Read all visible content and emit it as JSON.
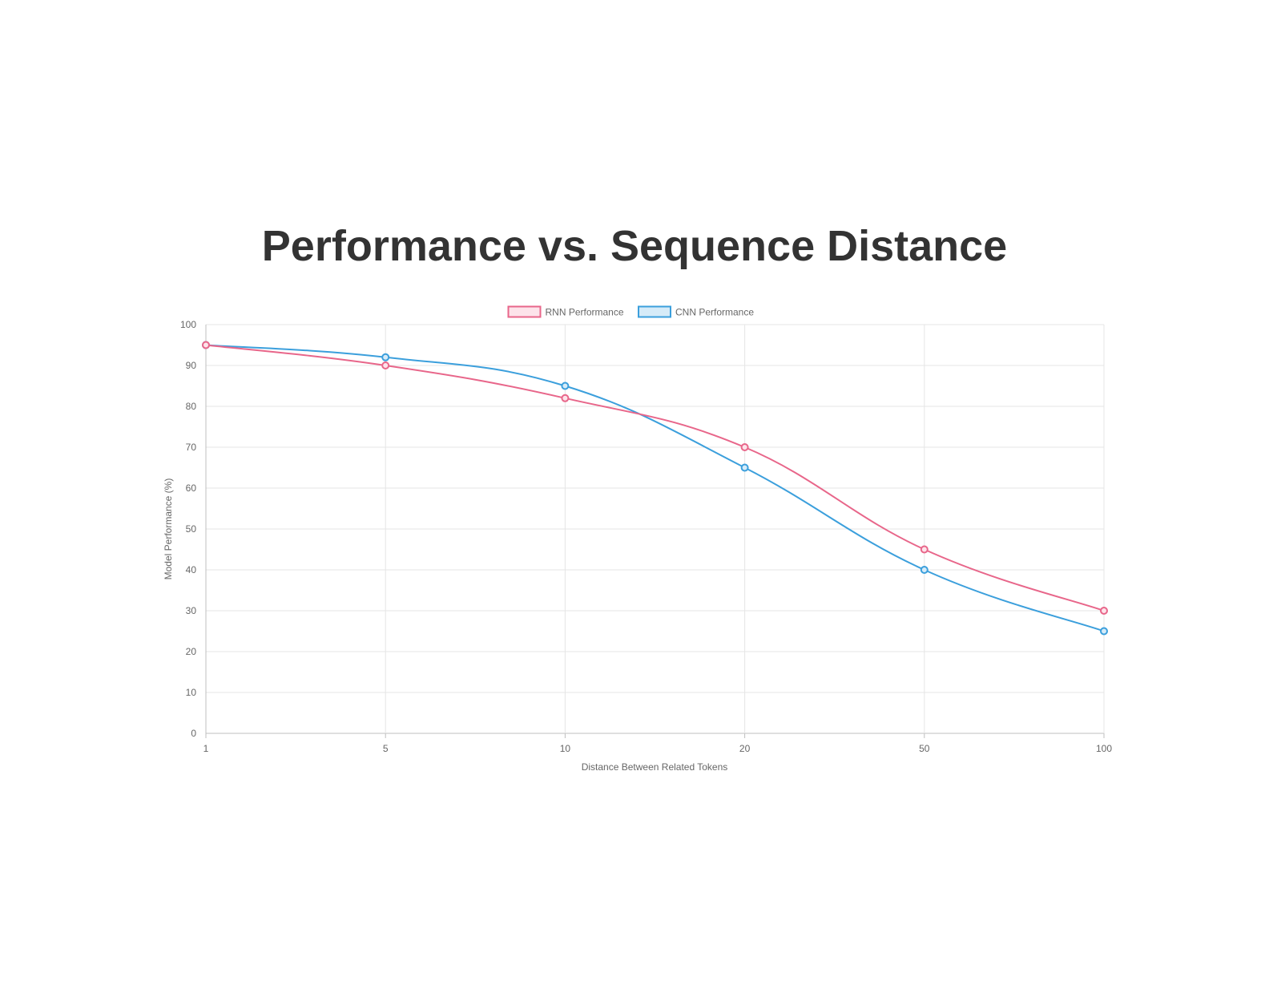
{
  "chart_data": {
    "type": "line",
    "title": "Performance vs. Sequence Distance",
    "xlabel": "Distance Between Related Tokens",
    "ylabel": "Model Performance (%)",
    "x": [
      "1",
      "5",
      "10",
      "20",
      "50",
      "100"
    ],
    "ylim": [
      0,
      100
    ],
    "yticks": [
      0,
      10,
      20,
      30,
      40,
      50,
      60,
      70,
      80,
      90,
      100
    ],
    "grid": true,
    "legend_position": "top",
    "series": [
      {
        "name": "RNN Performance",
        "values": [
          95,
          90,
          82,
          70,
          45,
          30
        ],
        "color": "#e8668a",
        "fill": "#fde3ea"
      },
      {
        "name": "CNN Performance",
        "values": [
          95,
          92,
          85,
          65,
          40,
          25
        ],
        "color": "#3b9fdc",
        "fill": "#d6ebf8"
      }
    ]
  }
}
